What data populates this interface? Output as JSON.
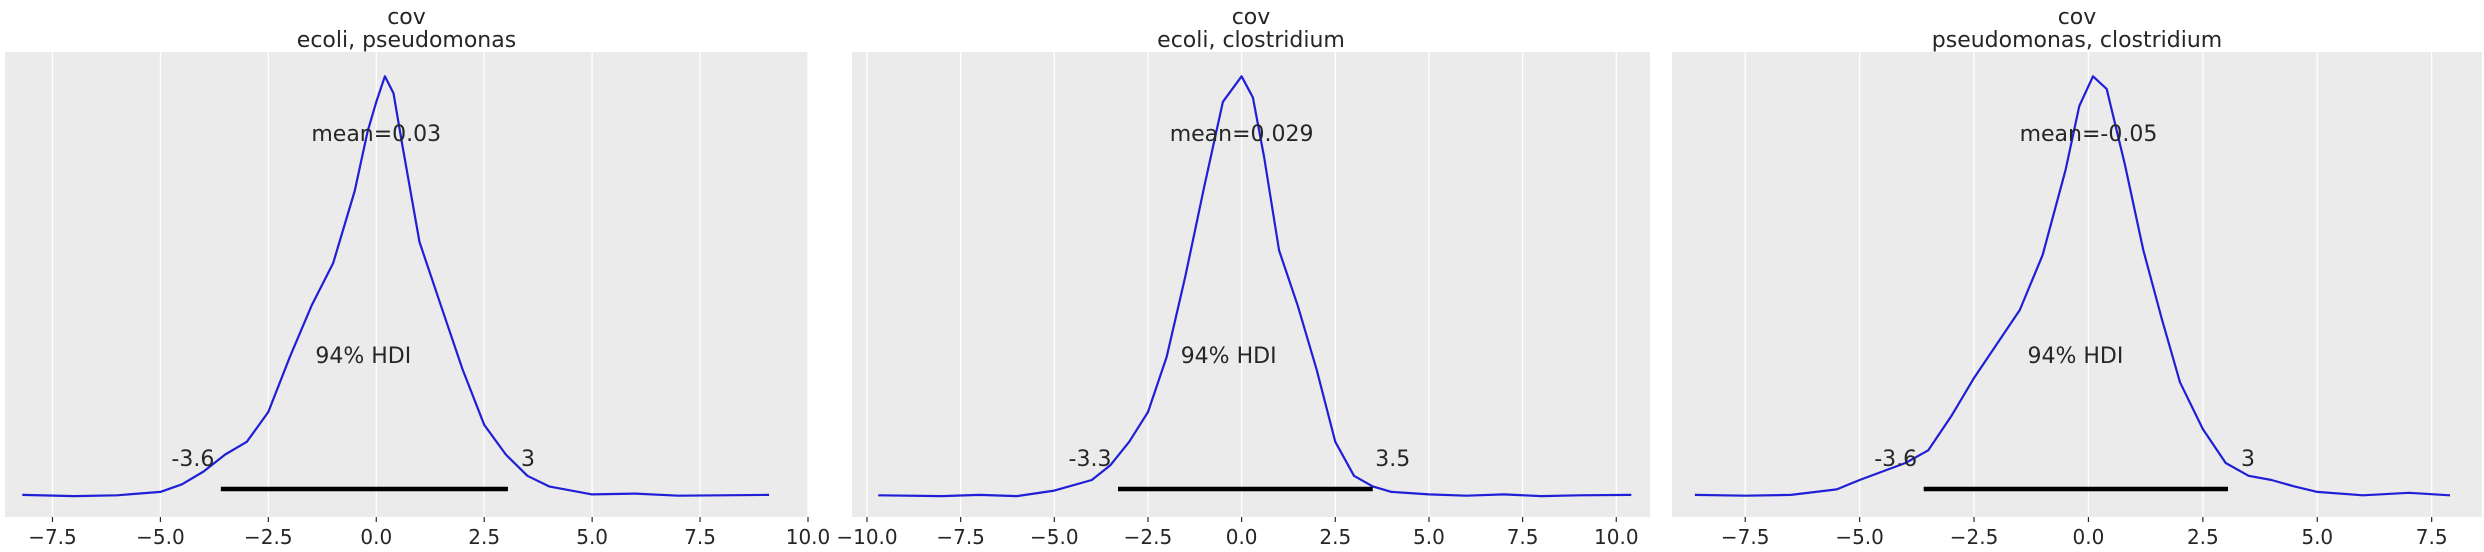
{
  "chart_data": [
    {
      "type": "line",
      "title": "cov",
      "subtitle": "ecoli, pseudomonas",
      "xlim": [
        -8.6,
        10.0
      ],
      "ylim": [
        0,
        1
      ],
      "xticks": [
        -7.5,
        -5.0,
        -2.5,
        0.0,
        2.5,
        5.0,
        7.5,
        10.0
      ],
      "xtick_labels": [
        "−7.5",
        "−5.0",
        "−2.5",
        "0.0",
        "2.5",
        "5.0",
        "7.5",
        "10.0"
      ],
      "grid": true,
      "mean_label": "mean=0.03",
      "hdi_label": "94% HDI",
      "hdi": [
        -3.6,
        3.05
      ],
      "hdi_low_label": "-3.6",
      "hdi_high_label": "3",
      "series": [
        {
          "x": [
            -8.2,
            -7.0,
            -6.0,
            -5.0,
            -4.5,
            -4.0,
            -3.5,
            -3.0,
            -2.5,
            -2.0,
            -1.5,
            -1.0,
            -0.5,
            -0.2,
            0.0,
            0.2,
            0.4,
            0.6,
            1.0,
            1.5,
            2.0,
            2.5,
            3.0,
            3.5,
            4.0,
            5.0,
            6.0,
            7.0,
            8.0,
            9.1
          ],
          "y": [
            0.005,
            0.002,
            0.004,
            0.012,
            0.03,
            0.06,
            0.1,
            0.13,
            0.2,
            0.33,
            0.45,
            0.55,
            0.72,
            0.86,
            0.93,
            0.99,
            0.95,
            0.83,
            0.6,
            0.45,
            0.3,
            0.17,
            0.1,
            0.05,
            0.025,
            0.006,
            0.008,
            0.003,
            0.004,
            0.005
          ]
        }
      ]
    },
    {
      "type": "line",
      "title": "cov",
      "subtitle": "ecoli, clostridium",
      "xlim": [
        -10.4,
        10.9
      ],
      "ylim": [
        0,
        1
      ],
      "xticks": [
        -10.0,
        -7.5,
        -5.0,
        -2.5,
        0.0,
        2.5,
        5.0,
        7.5,
        10.0
      ],
      "xtick_labels": [
        "−10.0",
        "−7.5",
        "−5.0",
        "−2.5",
        "0.0",
        "2.5",
        "5.0",
        "7.5",
        "10.0"
      ],
      "grid": true,
      "mean_label": "mean=0.029",
      "hdi_label": "94% HDI",
      "hdi": [
        -3.3,
        3.5
      ],
      "hdi_low_label": "-3.3",
      "hdi_high_label": "3.5",
      "series": [
        {
          "x": [
            -9.7,
            -8.0,
            -7.0,
            -6.0,
            -5.0,
            -4.0,
            -3.5,
            -3.0,
            -2.5,
            -2.0,
            -1.5,
            -1.0,
            -0.5,
            0.0,
            0.3,
            0.6,
            1.0,
            1.5,
            2.0,
            2.5,
            3.0,
            3.5,
            4.0,
            5.0,
            6.0,
            7.0,
            8.0,
            9.0,
            10.4
          ],
          "y": [
            0.004,
            0.002,
            0.005,
            0.002,
            0.015,
            0.04,
            0.075,
            0.13,
            0.2,
            0.33,
            0.52,
            0.73,
            0.93,
            0.99,
            0.94,
            0.8,
            0.58,
            0.45,
            0.3,
            0.13,
            0.05,
            0.025,
            0.012,
            0.006,
            0.003,
            0.006,
            0.002,
            0.004,
            0.005
          ]
        }
      ]
    },
    {
      "type": "line",
      "title": "cov",
      "subtitle": "pseudomonas, clostridium",
      "xlim": [
        -9.1,
        8.6
      ],
      "ylim": [
        0,
        1
      ],
      "xticks": [
        -7.5,
        -5.0,
        -2.5,
        0.0,
        2.5,
        5.0,
        7.5
      ],
      "xtick_labels": [
        "−7.5",
        "−5.0",
        "−2.5",
        "0.0",
        "2.5",
        "5.0",
        "7.5"
      ],
      "grid": true,
      "mean_label": "mean=-0.05",
      "hdi_label": "94% HDI",
      "hdi": [
        -3.6,
        3.05
      ],
      "hdi_low_label": "-3.6",
      "hdi_high_label": "3",
      "series": [
        {
          "x": [
            -8.6,
            -7.5,
            -6.5,
            -5.5,
            -5.0,
            -4.5,
            -4.0,
            -3.5,
            -3.0,
            -2.5,
            -2.0,
            -1.5,
            -1.0,
            -0.5,
            -0.2,
            0.1,
            0.4,
            0.8,
            1.2,
            1.6,
            2.0,
            2.5,
            3.0,
            3.5,
            4.0,
            4.5,
            5.0,
            6.0,
            7.0,
            7.9
          ],
          "y": [
            0.005,
            0.003,
            0.005,
            0.018,
            0.04,
            0.06,
            0.08,
            0.11,
            0.19,
            0.28,
            0.36,
            0.44,
            0.57,
            0.77,
            0.92,
            0.99,
            0.96,
            0.78,
            0.58,
            0.42,
            0.27,
            0.16,
            0.08,
            0.05,
            0.04,
            0.025,
            0.012,
            0.004,
            0.01,
            0.004
          ]
        }
      ]
    }
  ]
}
